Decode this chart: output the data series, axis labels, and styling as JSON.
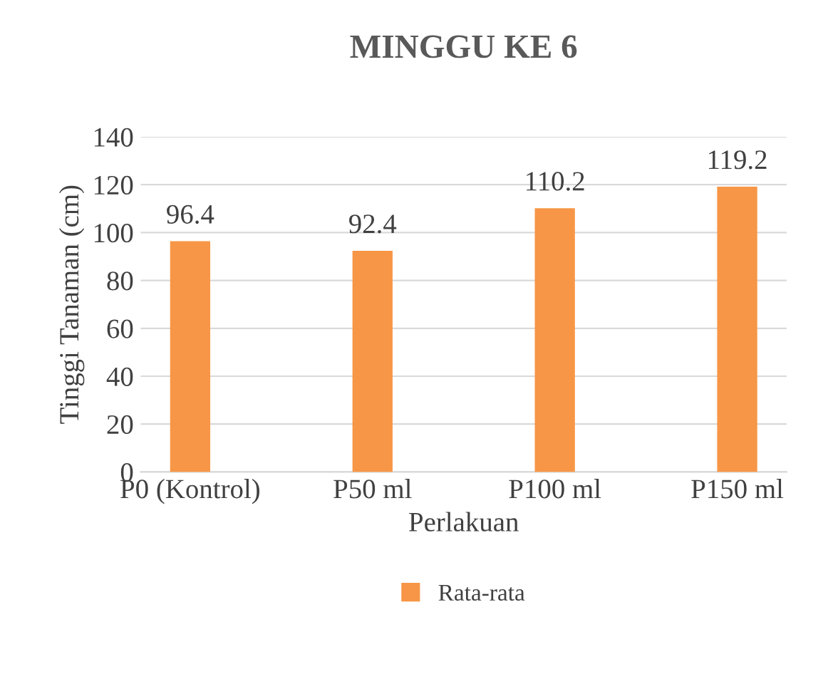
{
  "chart_data": {
    "type": "bar",
    "title": "MINGGU KE 6",
    "xlabel": "Perlakuan",
    "ylabel": "Tinggi Tanaman (cm)",
    "categories": [
      "P0 (Kontrol)",
      "P50 ml",
      "P100 ml",
      "P150 ml"
    ],
    "series": [
      {
        "name": "Rata-rata",
        "color": "#f79646",
        "values": [
          96.4,
          92.4,
          110.2,
          119.2
        ]
      }
    ],
    "ylim": [
      0,
      140
    ],
    "yticks": [
      0,
      20,
      40,
      60,
      80,
      100,
      120,
      140
    ],
    "grid": "y",
    "legend": "bottom",
    "data_labels": true
  }
}
